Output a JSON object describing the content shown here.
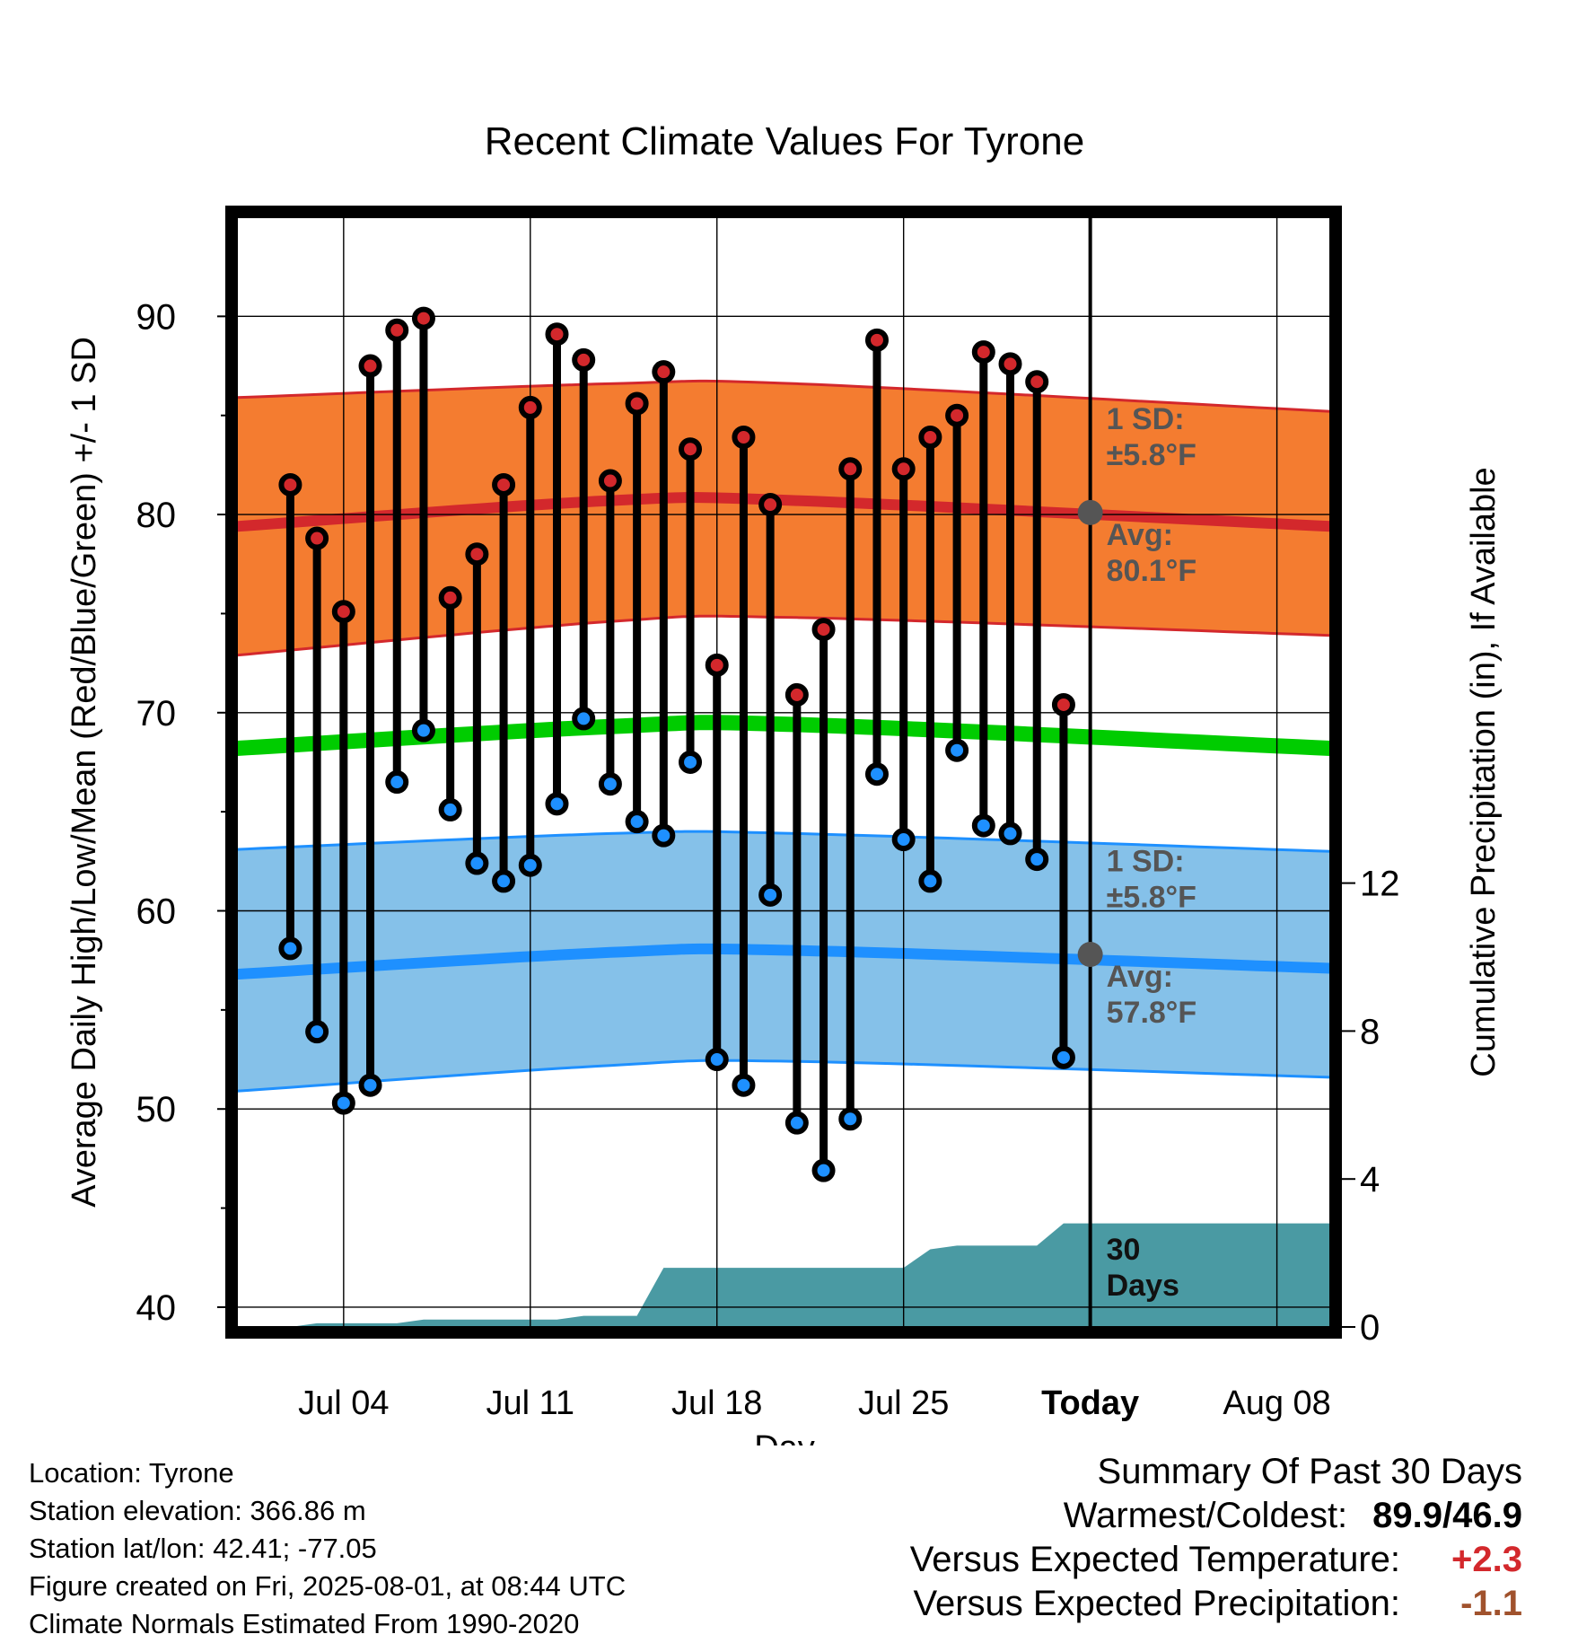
{
  "chart_data": {
    "type": "line",
    "title": "Recent Climate Values For Tyrone",
    "xlabel": "Day",
    "ylabel": "Average Daily High/Low/Mean (Red/Blue/Green) +/- 1 SD",
    "y2label": "Cumulative Precipitation (in), If Available",
    "ylim": [
      39,
      95
    ],
    "y2lim": [
      0,
      30
    ],
    "yticks": [
      "40",
      "50",
      "60",
      "70",
      "80",
      "90"
    ],
    "y2ticks": [
      "0",
      "4",
      "8",
      "12"
    ],
    "x_tick_labels": [
      "Jul 04",
      "Jul 11",
      "Jul 18",
      "Jul 25",
      "Today",
      "Aug 08"
    ],
    "x_range": [
      "2025-06-30",
      "2025-08-10"
    ],
    "today": "2025-08-01",
    "grid": true,
    "days": [
      "2025-07-02",
      "2025-07-03",
      "2025-07-04",
      "2025-07-05",
      "2025-07-06",
      "2025-07-07",
      "2025-07-08",
      "2025-07-09",
      "2025-07-10",
      "2025-07-11",
      "2025-07-12",
      "2025-07-13",
      "2025-07-14",
      "2025-07-15",
      "2025-07-16",
      "2025-07-17",
      "2025-07-18",
      "2025-07-19",
      "2025-07-20",
      "2025-07-21",
      "2025-07-22",
      "2025-07-23",
      "2025-07-24",
      "2025-07-25",
      "2025-07-26",
      "2025-07-27",
      "2025-07-28",
      "2025-07-29",
      "2025-07-30",
      "2025-07-31"
    ],
    "high": [
      81.5,
      78.8,
      75.1,
      87.5,
      89.3,
      89.9,
      75.8,
      78.0,
      81.5,
      85.4,
      89.1,
      87.8,
      81.7,
      85.6,
      87.2,
      83.3,
      72.4,
      83.9,
      80.5,
      70.9,
      74.2,
      82.3,
      88.8,
      82.3,
      83.9,
      85.0,
      88.2,
      87.6,
      86.7,
      70.4
    ],
    "low": [
      58.1,
      53.9,
      50.3,
      51.2,
      66.5,
      69.1,
      65.1,
      62.4,
      61.5,
      62.3,
      65.4,
      69.7,
      66.4,
      64.5,
      63.8,
      67.5,
      52.5,
      51.2,
      60.8,
      49.3,
      46.9,
      49.5,
      66.9,
      63.6,
      61.5,
      68.1,
      64.3,
      63.9,
      62.6,
      52.6
    ],
    "normals": {
      "x": [
        "2025-06-30",
        "2025-07-14",
        "2025-07-21",
        "2025-08-10"
      ],
      "high_avg": [
        79.4,
        80.7,
        80.7,
        79.4
      ],
      "high_sd_upper": [
        85.9,
        86.6,
        86.6,
        85.2
      ],
      "high_sd_lower": [
        72.9,
        74.6,
        74.8,
        73.9
      ],
      "low_avg": [
        56.8,
        57.9,
        58.0,
        57.1
      ],
      "low_sd_upper": [
        63.1,
        63.9,
        63.9,
        63.0
      ],
      "low_sd_lower": [
        50.9,
        52.2,
        52.4,
        51.6
      ],
      "mean_avg": [
        68.2,
        69.3,
        69.4,
        68.2
      ]
    },
    "precip": {
      "x": [
        "2025-06-30",
        "2025-07-01",
        "2025-07-02",
        "2025-07-03",
        "2025-07-04",
        "2025-07-05",
        "2025-07-06",
        "2025-07-07",
        "2025-07-08",
        "2025-07-09",
        "2025-07-10",
        "2025-07-11",
        "2025-07-12",
        "2025-07-13",
        "2025-07-14",
        "2025-07-15",
        "2025-07-16",
        "2025-07-17",
        "2025-07-18",
        "2025-07-19",
        "2025-07-20",
        "2025-07-21",
        "2025-07-22",
        "2025-07-23",
        "2025-07-24",
        "2025-07-25",
        "2025-07-26",
        "2025-07-27",
        "2025-07-28",
        "2025-07-29",
        "2025-07-30",
        "2025-07-31",
        "2025-08-01",
        "2025-08-10"
      ],
      "values": [
        0.0,
        0.0,
        0.0,
        0.1,
        0.1,
        0.1,
        0.1,
        0.2,
        0.2,
        0.2,
        0.2,
        0.2,
        0.2,
        0.3,
        0.3,
        0.3,
        1.6,
        1.6,
        1.6,
        1.6,
        1.6,
        1.6,
        1.6,
        1.6,
        1.6,
        1.6,
        2.1,
        2.2,
        2.2,
        2.2,
        2.2,
        2.8,
        2.8,
        2.8
      ]
    },
    "annotations": {
      "high_sd": [
        "1 SD:",
        "±5.8°F"
      ],
      "high_avg": [
        "Avg:",
        "80.1°F"
      ],
      "low_sd": [
        "1 SD:",
        "±5.8°F"
      ],
      "low_avg": [
        "Avg:",
        "57.8°F"
      ],
      "window": [
        "30",
        "Days"
      ]
    },
    "colors": {
      "high_point": "#d3282c",
      "low_point": "#1e90ff",
      "high_band": "#f47c30",
      "high_line": "#d3282c",
      "low_band": "#85c1e9",
      "low_line": "#1e90ff",
      "mean_line": "#00cc00",
      "precip_fill": "#4a9aa3",
      "today_marker": "#555555"
    }
  },
  "footer": {
    "location": "Location: Tyrone",
    "elevation": "Station elevation: 366.86 m",
    "latlon": "Station lat/lon: 42.41; -77.05",
    "created": "Figure created on Fri, 2025-08-01, at 08:44 UTC",
    "normals": "Climate Normals Estimated From 1990-2020"
  },
  "summary": {
    "title": "Summary Of Past 30 Days",
    "warmest_label": "Warmest/Coldest:",
    "warmest_value": "89.9/46.9",
    "temp_label": "Versus Expected Temperature:",
    "temp_value": "+2.3",
    "precip_label": "Versus Expected Precipitation:",
    "precip_value": "-1.1"
  }
}
